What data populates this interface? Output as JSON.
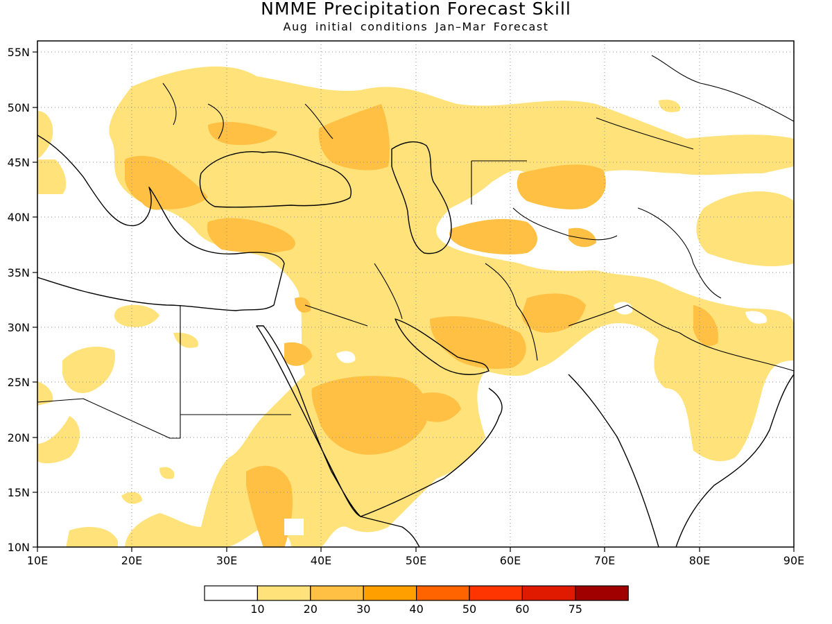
{
  "title": "NMME Precipitation Forecast Skill",
  "subtitle": "Aug initial conditions  Jan–Mar Forecast",
  "map": {
    "lon_range": [
      10,
      90
    ],
    "lat_range": [
      10,
      56
    ],
    "lon_ticks": [
      "10E",
      "20E",
      "30E",
      "40E",
      "50E",
      "60E",
      "70E",
      "80E",
      "90E"
    ],
    "lat_ticks": [
      "10N",
      "15N",
      "20N",
      "25N",
      "30N",
      "35N",
      "40N",
      "45N",
      "50N",
      "55N"
    ],
    "grid": "dotted",
    "land_outline_color": "#000000"
  },
  "legend": {
    "colors": [
      "#ffffff",
      "#ffe27a",
      "#ffc043",
      "#ffa000",
      "#ff6400",
      "#ff3500",
      "#e01a00",
      "#a00000"
    ],
    "labels": [
      "10",
      "20",
      "30",
      "40",
      "50",
      "60",
      "75"
    ]
  }
}
